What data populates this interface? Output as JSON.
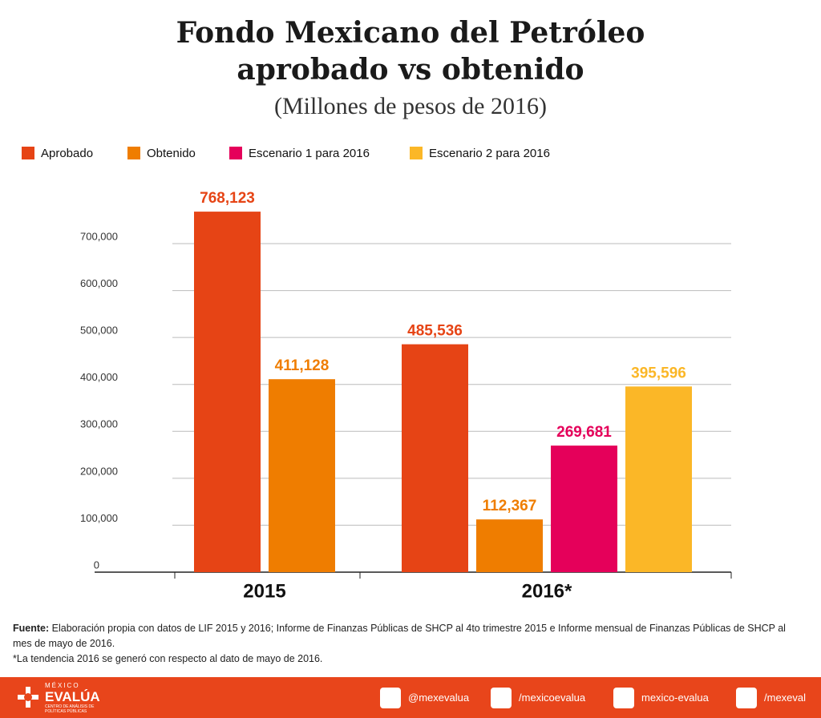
{
  "chart_data": {
    "type": "bar",
    "title": [
      "Fondo Mexicano del Petróleo",
      "aprobado vs obtenido"
    ],
    "subtitle": "(Millones de pesos de 2016)",
    "categories": [
      "2015",
      "2016*"
    ],
    "series": [
      {
        "name": "Aprobado",
        "color": "#e64415",
        "values": [
          768123,
          485536
        ],
        "value_labels": [
          "768,123",
          "485,536"
        ]
      },
      {
        "name": "Obtenido",
        "color": "#ef7d00",
        "values": [
          411128,
          112367
        ],
        "value_labels": [
          "411,128",
          "112,367"
        ]
      },
      {
        "name": "Escenario 1 para 2016",
        "color": "#e5005a",
        "values": [
          null,
          269681
        ],
        "value_labels": [
          null,
          "269,681"
        ]
      },
      {
        "name": "Escenario 2 para 2016",
        "color": "#fbb727",
        "values": [
          null,
          395596
        ],
        "value_labels": [
          null,
          "395,596"
        ]
      }
    ],
    "ylim": [
      0,
      800000
    ],
    "yticks": [
      0,
      {
        "value": 100000,
        "label": "100,000"
      },
      {
        "value": 200000,
        "label": "200,000"
      },
      {
        "value": 300000,
        "label": "300,000"
      },
      {
        "value": 400000,
        "label": "400,000"
      },
      {
        "value": 500000,
        "label": "500,000"
      },
      {
        "value": 600000,
        "label": "600,000"
      },
      {
        "value": 700000,
        "label": "700,000"
      }
    ],
    "grid": true
  },
  "footer": {
    "source_label": "Fuente:",
    "source": "Elaboración propia con datos de LIF 2015 y 2016; Informe de Finanzas Públicas de SHCP al 4to trimestre 2015 e Informe mensual de Finanzas Públicas de SHCP al mes de mayo de 2016.",
    "note": "*La tendencia 2016 se generó con respecto al dato de mayo de 2016."
  },
  "brand": {
    "top": "MÉXICO",
    "name": "EVALÚA",
    "tagline": "CENTRO DE ANÁLISIS DE POLÍTICAS PÚBLICAS"
  },
  "social": [
    "@mexevalua",
    "/mexicoevalua",
    "mexico-evalua",
    "/mexeval"
  ]
}
